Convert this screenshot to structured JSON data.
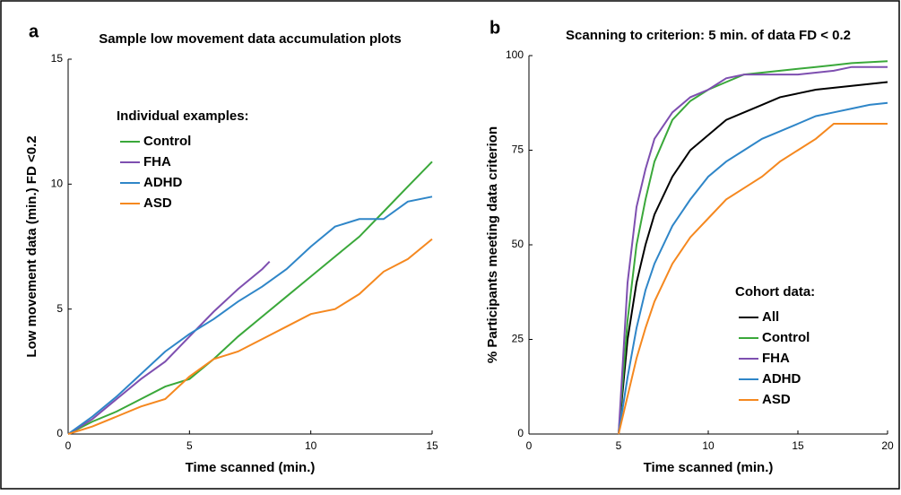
{
  "chart_data": [
    {
      "type": "line",
      "panel_label": "a",
      "title": "Sample low movement data accumulation plots",
      "x_label": "Time scanned (min.)",
      "y_label": "Low movement data (min.) FD <0.2",
      "xlim": [
        0,
        15
      ],
      "ylim": [
        0,
        15
      ],
      "xticks": [
        0,
        5,
        10,
        15
      ],
      "yticks": [
        0,
        5,
        10,
        15
      ],
      "legend_title": "Individual examples:",
      "legend": "upper left",
      "series": [
        {
          "name": "Control",
          "color": "#3aa83a",
          "x": [
            0,
            1,
            2,
            3,
            4,
            5,
            6,
            7,
            8,
            9,
            10,
            11,
            12,
            13,
            14,
            15
          ],
          "values": [
            0,
            0.5,
            0.9,
            1.4,
            1.9,
            2.2,
            3.0,
            3.9,
            4.7,
            5.5,
            6.3,
            7.1,
            7.9,
            8.9,
            9.9,
            10.9
          ]
        },
        {
          "name": "FHA",
          "color": "#7e4fb0",
          "x": [
            0,
            1,
            2,
            3,
            4,
            5,
            6,
            7,
            8,
            8.3
          ],
          "values": [
            0,
            0.6,
            1.4,
            2.2,
            2.9,
            3.9,
            4.9,
            5.8,
            6.6,
            6.9
          ]
        },
        {
          "name": "ADHD",
          "color": "#2f86c8",
          "x": [
            0,
            1,
            2,
            3,
            4,
            5,
            6,
            7,
            8,
            9,
            10,
            11,
            12,
            13,
            14,
            15
          ],
          "values": [
            0,
            0.7,
            1.5,
            2.4,
            3.3,
            4.0,
            4.6,
            5.3,
            5.9,
            6.6,
            7.5,
            8.3,
            8.6,
            8.6,
            9.3,
            9.5
          ]
        },
        {
          "name": "ASD",
          "color": "#f5881f",
          "x": [
            0,
            1,
            2,
            3,
            4,
            5,
            6,
            7,
            8,
            9,
            10,
            11,
            12,
            13,
            14,
            15
          ],
          "values": [
            0,
            0.3,
            0.7,
            1.1,
            1.4,
            2.3,
            3.0,
            3.3,
            3.8,
            4.3,
            4.8,
            5.0,
            5.6,
            6.5,
            7.0,
            7.8
          ]
        }
      ]
    },
    {
      "type": "line",
      "panel_label": "b",
      "title": "Scanning to criterion: 5 min. of data FD < 0.2",
      "x_label": "Time scanned (min.)",
      "y_label": "% Participants meeting data criterion",
      "xlim": [
        0,
        20
      ],
      "ylim": [
        0,
        100
      ],
      "xticks": [
        0,
        5,
        10,
        15,
        20
      ],
      "yticks": [
        0,
        25,
        50,
        75,
        100
      ],
      "legend_title": "Cohort data:",
      "legend": "lower right",
      "series": [
        {
          "name": "All",
          "color": "#000000",
          "x": [
            5,
            5.5,
            6,
            6.5,
            7,
            8,
            9,
            10,
            11,
            12,
            13,
            14,
            15,
            16,
            17,
            18,
            19,
            20
          ],
          "values": [
            0,
            25,
            40,
            50,
            58,
            68,
            75,
            79,
            83,
            85,
            87,
            89,
            90,
            91,
            91.5,
            92,
            92.5,
            93
          ]
        },
        {
          "name": "Control",
          "color": "#3aa83a",
          "x": [
            5,
            5.5,
            6,
            6.5,
            7,
            8,
            9,
            10,
            11,
            12,
            13,
            14,
            15,
            16,
            17,
            18,
            20
          ],
          "values": [
            0,
            30,
            50,
            62,
            72,
            83,
            88,
            91,
            93,
            95,
            95.5,
            96,
            96.5,
            97,
            97.5,
            98,
            98.5
          ]
        },
        {
          "name": "FHA",
          "color": "#7e4fb0",
          "x": [
            5,
            5.5,
            6,
            6.5,
            7,
            8,
            9,
            10,
            11,
            12,
            15,
            17,
            18,
            20
          ],
          "values": [
            0,
            40,
            60,
            70,
            78,
            85,
            89,
            91,
            94,
            95,
            95,
            96,
            97,
            97
          ]
        },
        {
          "name": "ADHD",
          "color": "#2f86c8",
          "x": [
            5,
            5.5,
            6,
            6.5,
            7,
            8,
            9,
            10,
            11,
            12,
            13,
            14,
            15,
            16,
            17,
            18,
            19,
            20
          ],
          "values": [
            0,
            15,
            28,
            38,
            45,
            55,
            62,
            68,
            72,
            75,
            78,
            80,
            82,
            84,
            85,
            86,
            87,
            87.5
          ]
        },
        {
          "name": "ASD",
          "color": "#f5881f",
          "x": [
            5,
            5.5,
            6,
            6.5,
            7,
            8,
            9,
            10,
            11,
            12,
            13,
            14,
            15,
            16,
            17,
            20
          ],
          "values": [
            0,
            10,
            20,
            28,
            35,
            45,
            52,
            57,
            62,
            65,
            68,
            72,
            75,
            78,
            82,
            82
          ]
        }
      ]
    }
  ]
}
